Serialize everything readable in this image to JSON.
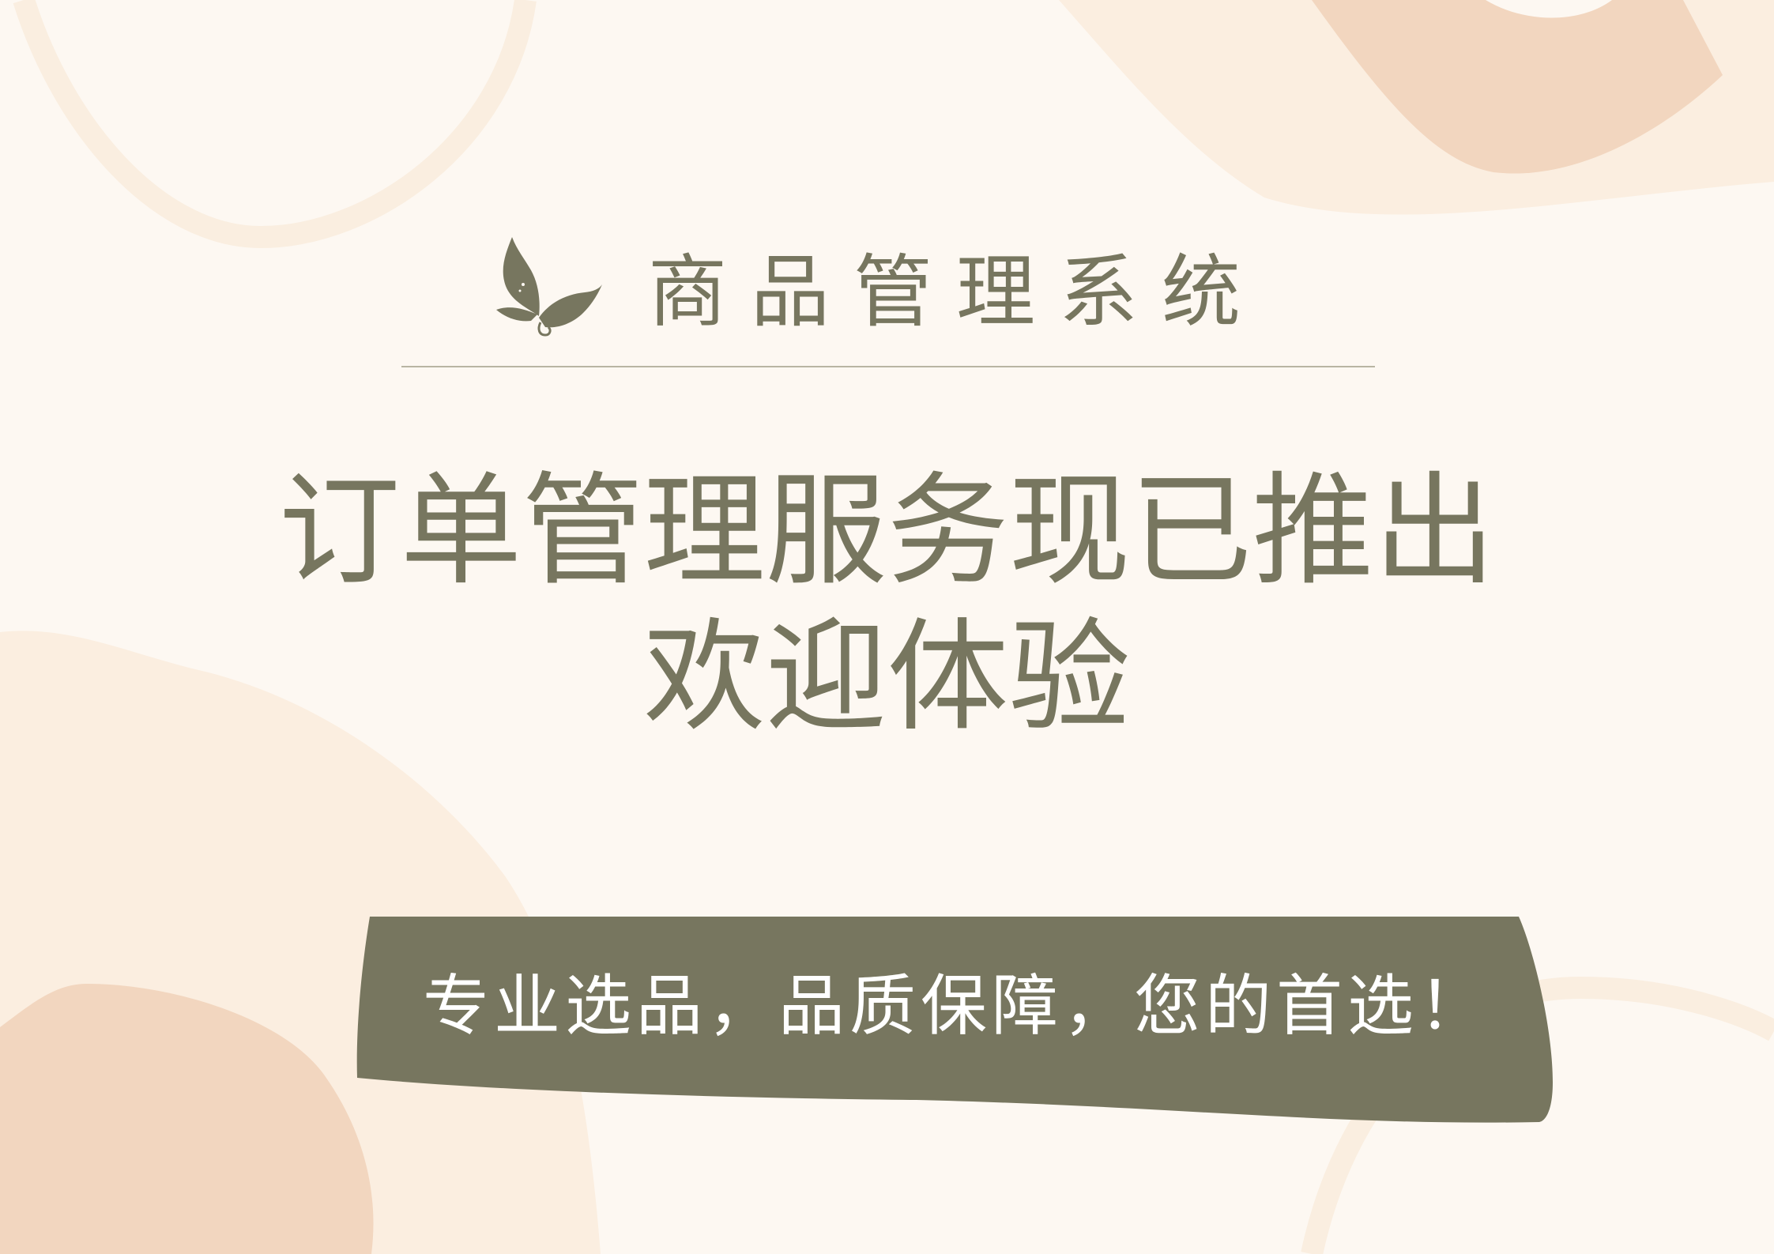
{
  "brand": {
    "title": "商品管理系统",
    "logo_icon": "butterfly-icon"
  },
  "headline": {
    "line1": "订单管理服务现已推出",
    "line2": "欢迎体验"
  },
  "banner": {
    "text": "专业选品，品质保障，您的首选！"
  },
  "colors": {
    "background": "#fdf8f2",
    "accent_olive": "#77765f",
    "blob_peach": "#f2d6bf",
    "blob_light": "#fbeee0",
    "banner_text": "#ffffff"
  }
}
